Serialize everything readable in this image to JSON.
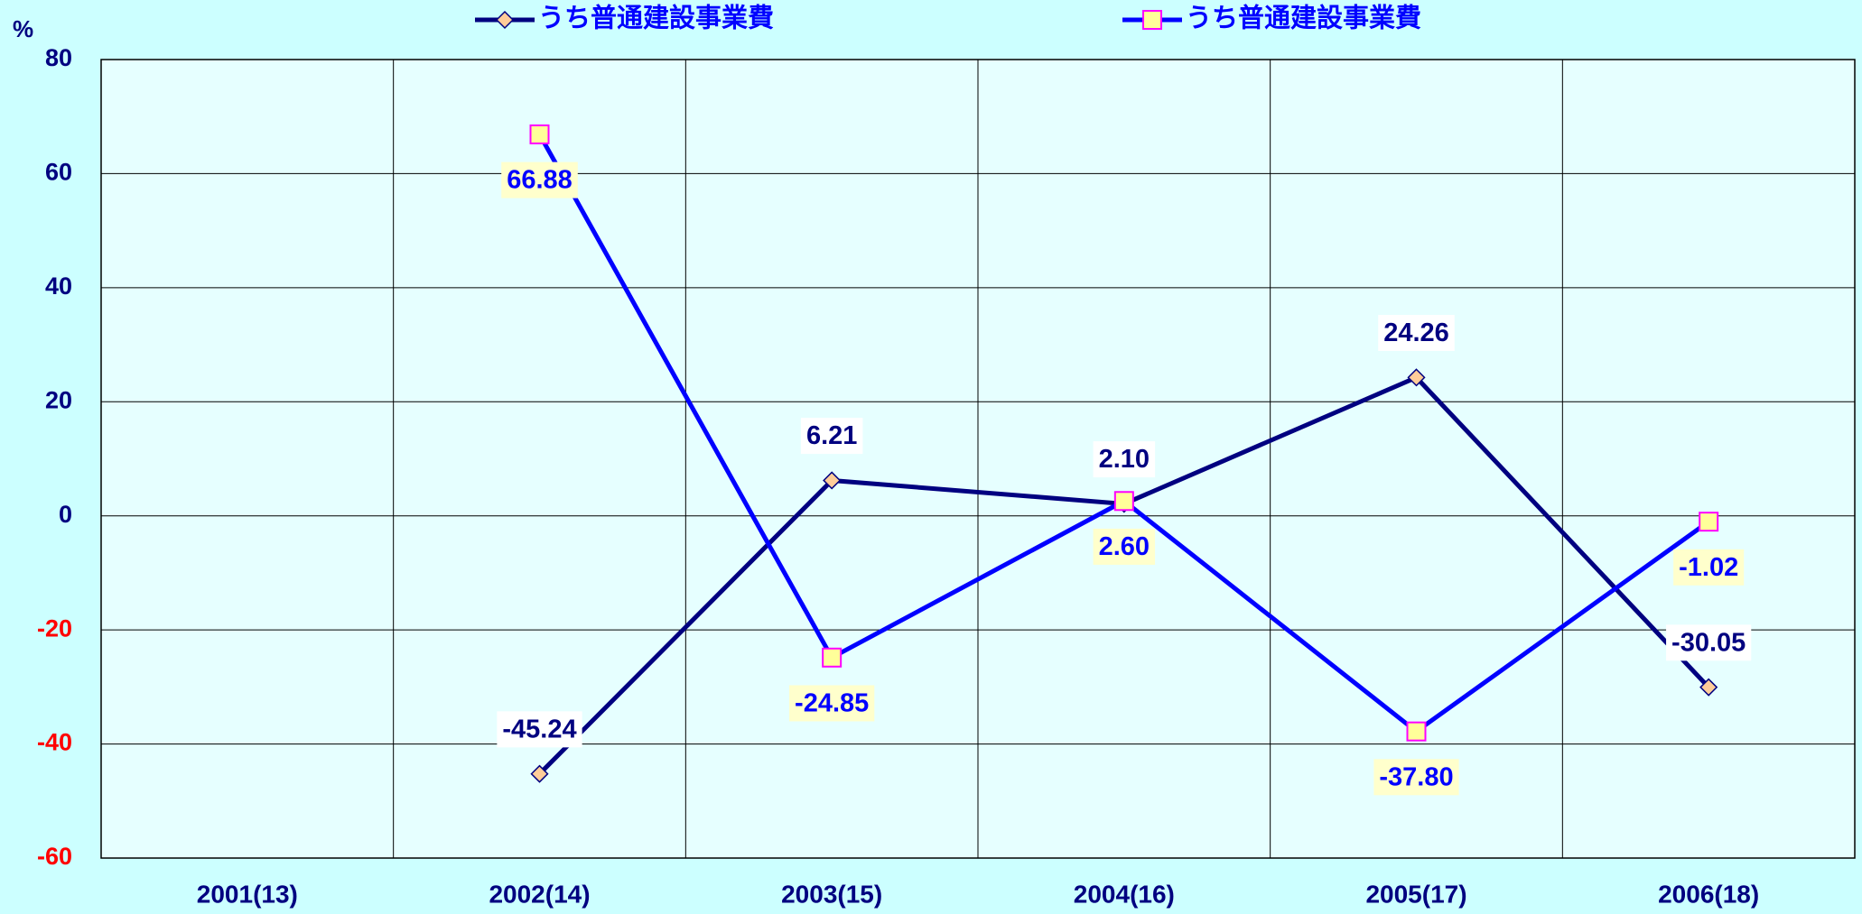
{
  "chart_data": {
    "type": "line",
    "y_label": "%",
    "categories": [
      "2001(13)",
      "2002(14)",
      "2003(15)",
      "2004(16)",
      "2005(17)",
      "2006(18)"
    ],
    "series": [
      {
        "name": "うち普通建設事業費",
        "color": "#000080",
        "marker": "diamond",
        "marker_fill": "#ffcc99",
        "label_box": "#ffffff",
        "label_color": "#000080",
        "label_side": "above",
        "values": [
          null,
          -45.24,
          6.21,
          2.1,
          24.26,
          -30.05
        ],
        "value_labels": [
          null,
          "-45.24",
          "6.21",
          "2.10",
          "24.26",
          "-30.05"
        ]
      },
      {
        "name": "うち普通建設事業費",
        "color": "#0000ff",
        "marker": "square",
        "marker_fill": "#ffff99",
        "marker_stroke": "#ff00ff",
        "label_box": "#ffffcc",
        "label_color": "#0000ff",
        "label_side": "below",
        "values": [
          null,
          66.88,
          -24.85,
          2.6,
          -37.8,
          -1.02
        ],
        "value_labels": [
          null,
          "66.88",
          "-24.85",
          "2.60",
          "-37.80",
          "-1.02"
        ]
      }
    ],
    "ylim": [
      -60,
      80
    ],
    "yticks": [
      -60,
      -40,
      -20,
      0,
      20,
      40,
      60,
      80
    ],
    "tick_color": "#000080",
    "negative_tick_color": "#ff0000",
    "grid": true
  }
}
